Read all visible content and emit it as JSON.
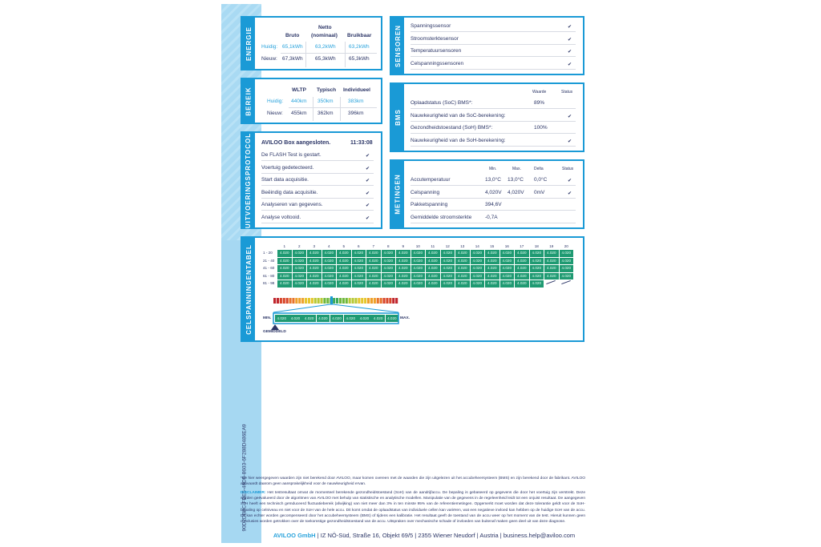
{
  "energie": {
    "title": "ENERGIE",
    "headers": [
      "Bruto",
      "Netto\n(nominaal)",
      "Bruikbaar"
    ],
    "headers_line1": "Netto",
    "headers_line2": "(nominaal)",
    "rows": [
      {
        "label": "Huidig:",
        "values": [
          "65,1kWh",
          "63,2kWh",
          "63,2kWh"
        ]
      },
      {
        "label": "Nieuw:",
        "values": [
          "67,3kWh",
          "65,3kWh",
          "65,3kWh"
        ]
      }
    ]
  },
  "bereik": {
    "title": "BEREIK",
    "headers": [
      "WLTP",
      "Typisch",
      "Individueel"
    ],
    "rows": [
      {
        "label": "Huidig:",
        "values": [
          "440km",
          "350km",
          "383km"
        ]
      },
      {
        "label": "Nieuw:",
        "values": [
          "455km",
          "362km",
          "396km"
        ]
      }
    ]
  },
  "protocol": {
    "title": "UITVOERINGSPROTOCOL",
    "heading": "AVILOO Box aangesloten.",
    "time": "11:33:08",
    "items": [
      "De FLASH Test is gestart.",
      "Voertuig gedetecteerd.",
      "Start data acquisitie.",
      "Beëindig data acquisitie.",
      "Analyseren van gegevens.",
      "Analyse voltooid."
    ]
  },
  "sensoren": {
    "title": "SENSOREN",
    "items": [
      "Spanningssensor",
      "Stroomsterktesensor",
      "Temperatuursensoren",
      "Celspanningssensoren"
    ]
  },
  "bms": {
    "title": "BMS",
    "col_value": "Waarde",
    "col_status": "Status",
    "rows": [
      {
        "label": "Oplaadstatus (SoC) BMS*:",
        "value": "89%",
        "ok": false
      },
      {
        "label": "Nauwkeurigheid van de SoC-berekening:",
        "value": "",
        "ok": true
      },
      {
        "label": "Gezondheidstoestand (SoH) BMS*:",
        "value": "100%",
        "ok": false
      },
      {
        "label": "Nauwkeurigheid van de SoH-berekening:",
        "value": "",
        "ok": true
      }
    ]
  },
  "metingen": {
    "title": "METINGEN",
    "cols": [
      "Min.",
      "Max.",
      "Delta",
      "Status"
    ],
    "rows": [
      {
        "label": "Accutemperatuur",
        "values": [
          "13,0°C",
          "13,0°C",
          "0,0°C"
        ],
        "ok": true
      },
      {
        "label": "Celspanning",
        "values": [
          "4,020V",
          "4,020V",
          "0mV"
        ],
        "ok": true
      },
      {
        "label": "Pakketspanning",
        "values": [
          "394,6V",
          "",
          ""
        ],
        "ok": false
      },
      {
        "label": "Gemiddelde stroomsterkte",
        "values": [
          "-0,7A",
          "",
          ""
        ],
        "ok": false
      }
    ]
  },
  "celtabel": {
    "title": "CELSPANNINGENTABEL",
    "columns": [
      "1",
      "2",
      "3",
      "4",
      "5",
      "6",
      "7",
      "8",
      "9",
      "10",
      "11",
      "12",
      "13",
      "14",
      "15",
      "16",
      "17",
      "18",
      "19",
      "20"
    ],
    "row_labels": [
      "1 - 20",
      "21 - 40",
      "41 - 60",
      "61 - 80",
      "81 - 98"
    ],
    "cell_value": "4.020",
    "cell_count": 98,
    "zoom_values": [
      "4.020",
      "4.020",
      "4.020",
      "4.020",
      "4.020",
      "4.020",
      "4.020",
      "4.020",
      "4.020"
    ],
    "min_label": "MIN.",
    "max_label": "MAX.",
    "avg_label": "GEMIDDELD",
    "cell_color": "#1f9a72"
  },
  "side_id": "90D2DB8C-FBE5-46D6-8603-6F288D486EA9",
  "footnote": "*De hier weergegeven waarden zijn niet berekend door AVILOO, maar komen overeen met de waarden die zijn uitgelezen uit het accubeheersysteem (BMS) en zijn berekend door de fabrikant. AVILOO aanvaardt daarom geen aansprakelijkheid voor de nauwkeurigheid ervan.",
  "disclaimer_label": "DISCLAIMER:",
  "disclaimer": " Het testresultaat omvat de momenteel berekende gezondheidstoestand (SoH) van de aandrijfaccu. De bepaling is gebaseerd op gegevens die door het voertuig zijn verstrekt. Deze worden geëvalueerd door de algoritmen van AVILOO met behulp van statistische en analytische modellen. Manipulatie van de gegevens in de regeleenheid leidt tot een onjuist resultaat. De aangegeven SoH heeft een technisch geïnduceerd fluctuatiebereik (afwijking) van niet meer dan 3% in ten minste 95% van de referentiemetingen. Opgemerkt moet worden dat deze tolerantie geldt voor de SoH-bepaling op celniveau en niet voor de SoH van de hele accu. Dit komt omdat de oplaadstatus van individuele cellen kan variëren, wat een negatieve invloed kan hebben op de huidige SoH van de accu. Dit kan echter worden gecompenseerd door het accubeheersysteem (BMS) of tijdens een kalibratie. Het resultaat geeft de toestand van de accu weer op het moment van de test. Hieruit kunnen geen conclusies worden getrokken over de toekomstige gezondheidstoestand van de accu. Uitspraken over mechanische schade of invloeden van buitenaf maken geen deel uit van deze diagnose.",
  "footer": {
    "company": "AVILOO GmbH",
    "address": "IZ NÖ-Süd, Straße 16, Objekt 69/5",
    "city": "2355 Wiener Neudorf",
    "country": "Austria",
    "email": "business.help@aviloo.com",
    "sep": "|"
  },
  "colors": {
    "accent": "#1a9ad6",
    "text": "#2b3566",
    "cell": "#1f9a72"
  }
}
